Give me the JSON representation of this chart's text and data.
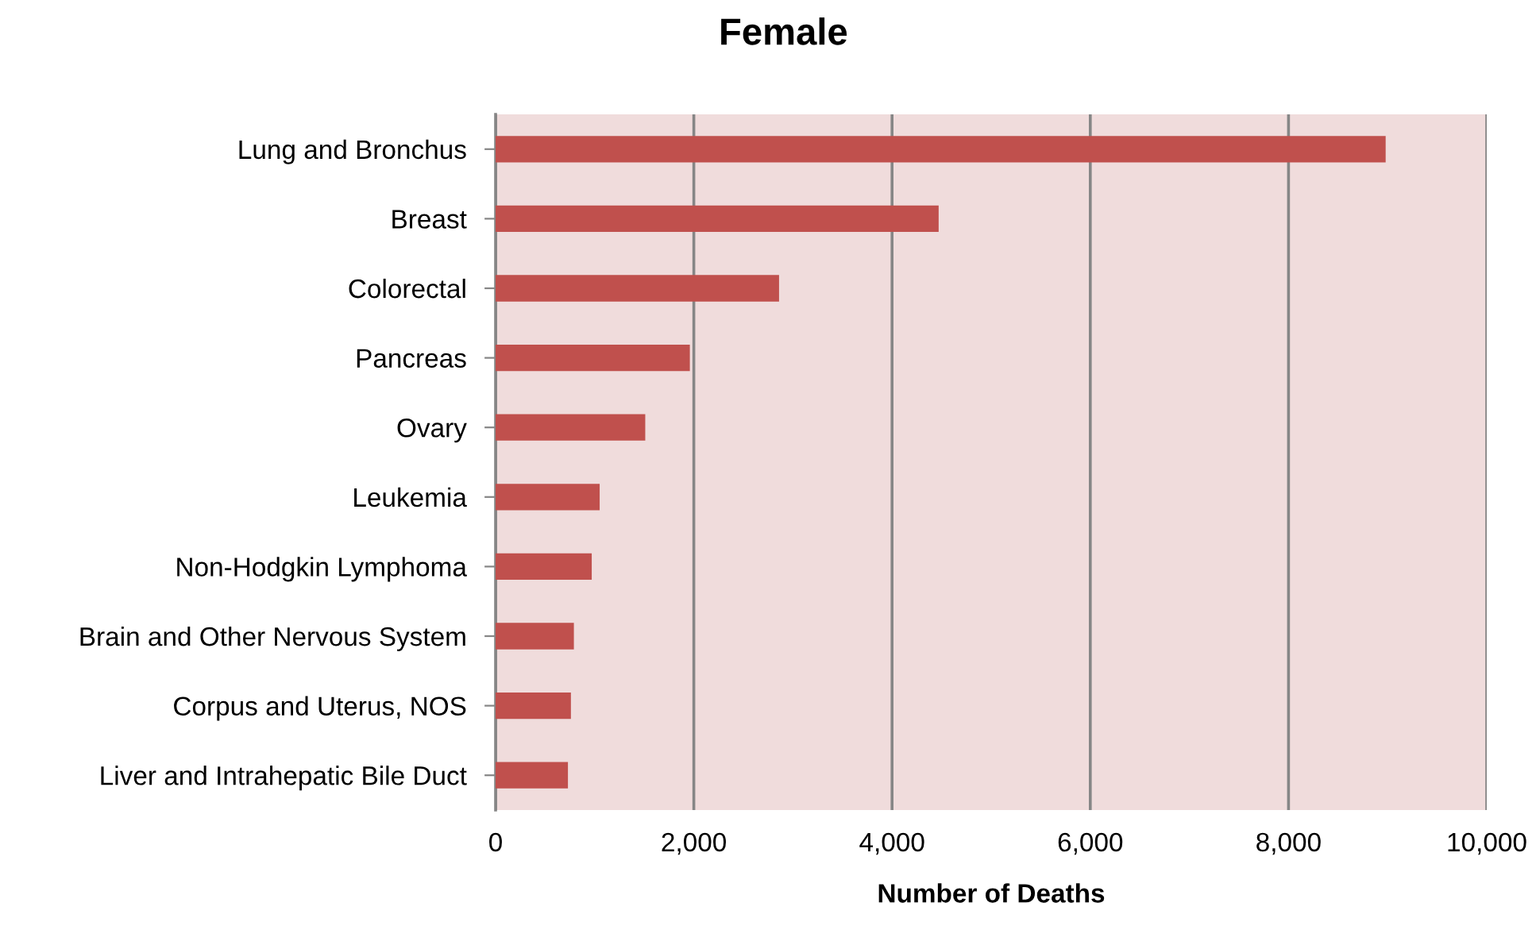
{
  "chart_data": {
    "type": "bar",
    "orientation": "horizontal",
    "title": "Female",
    "xlabel": "Number of Deaths",
    "categories": [
      "Lung and Bronchus",
      "Breast",
      "Colorectal",
      "Pancreas",
      "Ovary",
      "Leukemia",
      "Non-Hodgkin Lymphoma",
      "Brain and Other Nervous System",
      "Corpus and Uterus, NOS",
      "Liver and Intrahepatic Bile Duct"
    ],
    "values": [
      8980,
      4470,
      2860,
      1960,
      1510,
      1050,
      970,
      790,
      760,
      730
    ],
    "color": "#c0504d",
    "xlim": [
      0,
      10000
    ],
    "xticks": [
      {
        "value": 0,
        "label": "0"
      },
      {
        "value": 2000,
        "label": "2,000"
      },
      {
        "value": 4000,
        "label": "4,000"
      },
      {
        "value": 6000,
        "label": "6,000"
      },
      {
        "value": 8000,
        "label": "8,000"
      },
      {
        "value": 10000,
        "label": "10,000"
      }
    ],
    "grid": "x",
    "legend": false
  }
}
